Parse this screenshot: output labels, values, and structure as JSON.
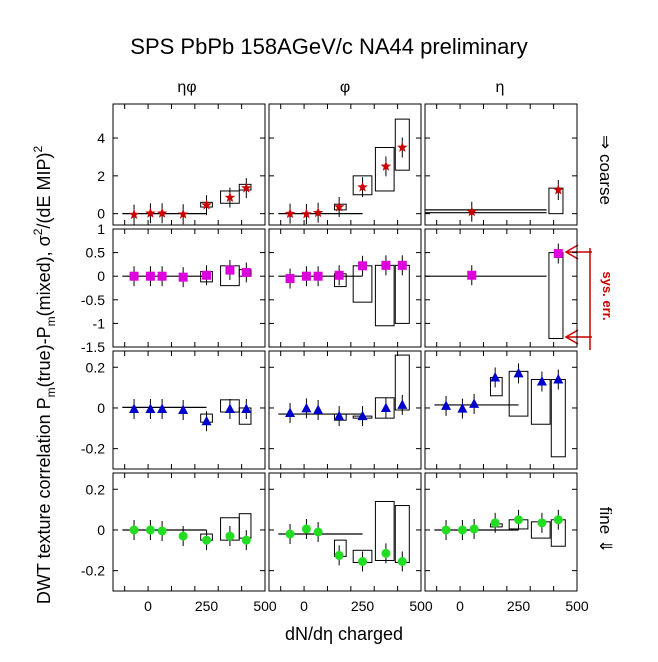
{
  "chart_data": {
    "type": "scatter",
    "title": "SPS PbPb 158AGeV/c NA44 preliminary",
    "xlabel": "dN/dη charged",
    "ylabel": "DWT texture correlation P_m(true)-P_m(mixed), σ²/(dE MIP)²",
    "ylabel_main": "DWT texture correlation P",
    "ylabel_sub": "m",
    "ylabel_mid": "(true)-P",
    "ylabel_sub2": "m",
    "ylabel_tail": "(mixed), σ",
    "ylabel_sup": "2",
    "ylabel_tail2": "/(dE MIP)",
    "ylabel_sup2": "2",
    "columns": [
      "ηφ",
      "φ",
      "η"
    ],
    "side_labels": {
      "coarse": "⇒ coarse",
      "fine": "fine ⇓"
    },
    "sys_err_label": "sys. err.",
    "x_ticks": [
      "0",
      "250",
      "500"
    ],
    "xlim": [
      -150,
      500
    ],
    "rows": [
      {
        "ylim": [
          -0.6,
          5.8
        ],
        "yticks": [
          "4",
          "2",
          "0"
        ],
        "ytick_values": [
          4,
          2,
          0
        ],
        "marker": "star",
        "color": "#cc0000",
        "panels": [
          {
            "points": [
              [
                -60,
                -0.05
              ],
              [
                10,
                0.02
              ],
              [
                60,
                0.02
              ],
              [
                150,
                -0.03
              ],
              [
                250,
                0.45
              ],
              [
                350,
                0.85
              ],
              [
                420,
                1.35
              ]
            ],
            "boxes": [
              [
                -110,
                250,
                0,
                0
              ],
              [
                225,
                275,
                0.35,
                0.6
              ],
              [
                310,
                390,
                0.55,
                1.2
              ],
              [
                390,
                440,
                1.25,
                1.55
              ]
            ]
          },
          {
            "points": [
              [
                -60,
                0.0
              ],
              [
                10,
                -0.02
              ],
              [
                60,
                0.05
              ],
              [
                150,
                0.35
              ],
              [
                250,
                1.4
              ],
              [
                350,
                2.5
              ],
              [
                420,
                3.5
              ]
            ],
            "boxes": [
              [
                -110,
                250,
                0,
                0
              ],
              [
                130,
                180,
                0.2,
                0.5
              ],
              [
                210,
                290,
                1.0,
                2.0
              ],
              [
                305,
                385,
                1.2,
                3.5
              ],
              [
                390,
                450,
                2.3,
                5.0
              ]
            ]
          },
          {
            "points": [
              [
                50,
                0.1
              ],
              [
                420,
                1.25
              ]
            ],
            "boxes": [
              [
                -150,
                370,
                0.2,
                0.2
              ],
              [
                -150,
                370,
                0.05,
                0.05
              ],
              [
                380,
                440,
                0,
                1.35
              ]
            ]
          }
        ]
      },
      {
        "ylim": [
          -1.5,
          1.0
        ],
        "yticks": [
          "1",
          "0.5",
          "0",
          "-0.5",
          "-1",
          "-1.5"
        ],
        "ytick_values": [
          1,
          0.5,
          0,
          -0.5,
          -1,
          -1.5
        ],
        "marker": "square",
        "color": "#dd00dd",
        "panels": [
          {
            "points": [
              [
                -60,
                0.0
              ],
              [
                10,
                0.0
              ],
              [
                60,
                0.0
              ],
              [
                150,
                -0.02
              ],
              [
                250,
                0.02
              ],
              [
                350,
                0.13
              ],
              [
                420,
                0.08
              ]
            ],
            "boxes": [
              [
                -110,
                250,
                0,
                0
              ],
              [
                225,
                275,
                -0.12,
                0.1
              ],
              [
                310,
                390,
                -0.2,
                0.22
              ],
              [
                390,
                440,
                0,
                0.14
              ]
            ]
          },
          {
            "points": [
              [
                -60,
                -0.05
              ],
              [
                10,
                0.0
              ],
              [
                60,
                0.0
              ],
              [
                150,
                0.02
              ],
              [
                250,
                0.22
              ],
              [
                350,
                0.23
              ],
              [
                420,
                0.23
              ]
            ],
            "boxes": [
              [
                -110,
                250,
                0,
                0
              ],
              [
                130,
                180,
                -0.22,
                0.05
              ],
              [
                210,
                290,
                -0.55,
                0.22
              ],
              [
                305,
                385,
                -1.05,
                0.23
              ],
              [
                390,
                450,
                -1.0,
                0.23
              ]
            ]
          },
          {
            "points": [
              [
                50,
                0.02
              ],
              [
                420,
                0.48
              ]
            ],
            "boxes": [
              [
                -150,
                370,
                0,
                0
              ],
              [
                380,
                440,
                -1.32,
                0.5
              ]
            ]
          }
        ]
      },
      {
        "ylim": [
          -0.3,
          0.28
        ],
        "yticks": [
          "0.2",
          "0",
          "-0.2"
        ],
        "ytick_values": [
          0.2,
          0,
          -0.2
        ],
        "marker": "triangle",
        "color": "#0000cc",
        "panels": [
          {
            "points": [
              [
                -60,
                -0.005
              ],
              [
                10,
                -0.005
              ],
              [
                60,
                -0.005
              ],
              [
                150,
                -0.01
              ],
              [
                250,
                -0.065
              ],
              [
                350,
                -0.005
              ],
              [
                420,
                -0.005
              ]
            ],
            "boxes": [
              [
                -110,
                250,
                0.003,
                0.003
              ],
              [
                225,
                275,
                -0.07,
                -0.03
              ],
              [
                310,
                390,
                -0.02,
                0.04
              ],
              [
                390,
                440,
                -0.08,
                0.0
              ]
            ]
          },
          {
            "points": [
              [
                -60,
                -0.025
              ],
              [
                10,
                -0.002
              ],
              [
                60,
                -0.01
              ],
              [
                150,
                -0.04
              ],
              [
                250,
                -0.04
              ],
              [
                350,
                0.0
              ],
              [
                420,
                0.015
              ]
            ],
            "boxes": [
              [
                -110,
                250,
                -0.03,
                -0.03
              ],
              [
                130,
                180,
                -0.06,
                -0.03
              ],
              [
                210,
                290,
                -0.05,
                -0.04
              ],
              [
                305,
                385,
                -0.05,
                0.05
              ],
              [
                390,
                450,
                -0.01,
                0.26
              ]
            ]
          },
          {
            "points": [
              [
                -60,
                0.01
              ],
              [
                10,
                -0.003
              ],
              [
                60,
                0.02
              ],
              [
                150,
                0.15
              ],
              [
                250,
                0.17
              ],
              [
                350,
                0.13
              ],
              [
                420,
                0.14
              ]
            ],
            "boxes": [
              [
                -110,
                250,
                0.015,
                0.015
              ],
              [
                130,
                180,
                0.06,
                0.15
              ],
              [
                210,
                290,
                -0.04,
                0.18
              ],
              [
                305,
                385,
                -0.08,
                0.14
              ],
              [
                390,
                450,
                -0.24,
                0.14
              ]
            ]
          }
        ]
      },
      {
        "ylim": [
          -0.3,
          0.28
        ],
        "yticks": [
          "0.2",
          "0",
          "-0.2"
        ],
        "ytick_values": [
          0.2,
          0,
          -0.2
        ],
        "marker": "circle",
        "color": "#22dd22",
        "panels": [
          {
            "points": [
              [
                -60,
                0.0
              ],
              [
                10,
                0.0
              ],
              [
                60,
                -0.005
              ],
              [
                150,
                -0.03
              ],
              [
                250,
                -0.05
              ],
              [
                350,
                -0.03
              ],
              [
                420,
                -0.05
              ]
            ],
            "boxes": [
              [
                -110,
                250,
                0,
                0
              ],
              [
                225,
                275,
                -0.05,
                -0.02
              ],
              [
                310,
                390,
                -0.05,
                0.06
              ],
              [
                390,
                440,
                -0.04,
                0.08
              ]
            ]
          },
          {
            "points": [
              [
                -60,
                -0.02
              ],
              [
                10,
                0.005
              ],
              [
                60,
                -0.01
              ],
              [
                150,
                -0.125
              ],
              [
                250,
                -0.155
              ],
              [
                350,
                -0.115
              ],
              [
                420,
                -0.155
              ]
            ],
            "boxes": [
              [
                -110,
                250,
                -0.02,
                -0.02
              ],
              [
                130,
                180,
                -0.13,
                -0.05
              ],
              [
                210,
                290,
                -0.16,
                -0.1
              ],
              [
                305,
                385,
                -0.15,
                0.14
              ],
              [
                390,
                450,
                -0.16,
                0.12
              ]
            ]
          },
          {
            "points": [
              [
                -60,
                0.0
              ],
              [
                10,
                0.0
              ],
              [
                60,
                0.005
              ],
              [
                150,
                0.035
              ],
              [
                250,
                0.05
              ],
              [
                350,
                0.035
              ],
              [
                420,
                0.05
              ]
            ],
            "boxes": [
              [
                -110,
                250,
                0.0,
                0.0
              ],
              [
                130,
                180,
                0.015,
                0.03
              ],
              [
                210,
                290,
                0.005,
                0.05
              ],
              [
                305,
                385,
                -0.04,
                0.04
              ],
              [
                390,
                450,
                -0.08,
                0.05
              ]
            ]
          }
        ]
      }
    ]
  }
}
